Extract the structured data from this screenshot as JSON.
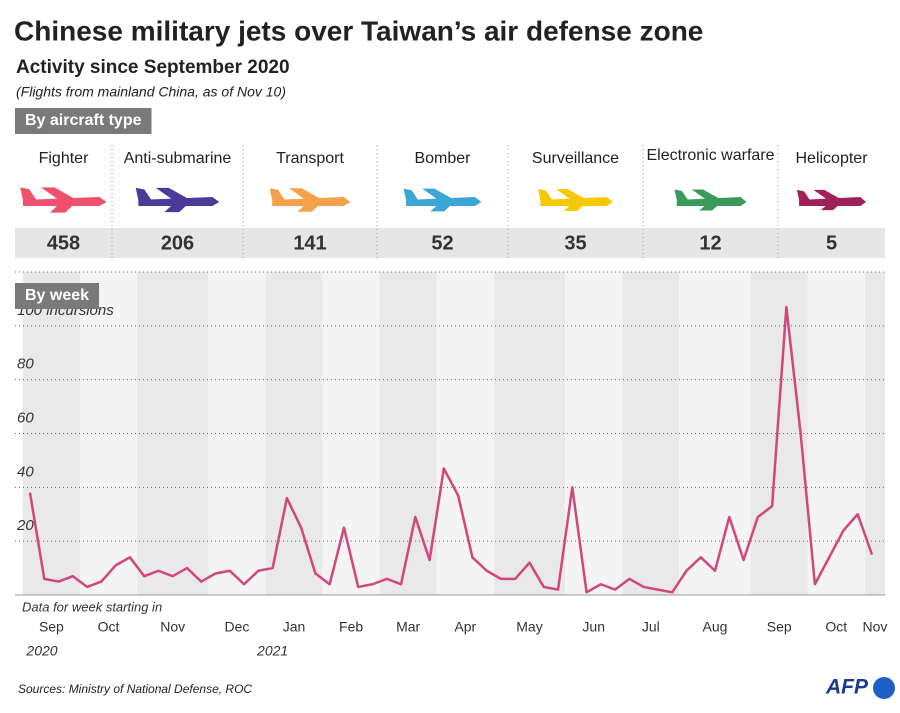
{
  "title": "Chinese military jets over Taiwan’s air defense zone",
  "subtitle": "Activity since September 2020",
  "note": "(Flights from mainland China, as of Nov 10)",
  "source": "Sources: Ministry of National Defense, ROC",
  "logo": "AFP",
  "chart_data": [
    {
      "type": "pictogram",
      "title": "By aircraft type",
      "categories": [
        "Fighter",
        "Anti-submarine",
        "Transport",
        "Bomber",
        "Surveillance",
        "Electronic warfare",
        "Helicopter"
      ],
      "values": [
        458,
        206,
        141,
        52,
        35,
        12,
        5
      ],
      "colors": [
        "#f0506e",
        "#4b3a9a",
        "#f5a04a",
        "#3aa6d8",
        "#f5c800",
        "#3a9a5a",
        "#a0205a"
      ]
    },
    {
      "type": "line",
      "title": "By week",
      "x_label": "Data for week starting in",
      "color": "#d1477c",
      "grid": true,
      "categories": [
        "Sep",
        null,
        null,
        null,
        "Oct",
        null,
        null,
        null,
        "Nov",
        null,
        null,
        null,
        null,
        "Dec",
        null,
        null,
        null,
        "Jan",
        null,
        null,
        null,
        "Feb",
        null,
        null,
        null,
        "Mar",
        null,
        null,
        null,
        "Apr",
        null,
        null,
        null,
        "May",
        null,
        null,
        null,
        null,
        "Jun",
        null,
        null,
        null,
        "Jul",
        null,
        null,
        null,
        "Aug",
        null,
        null,
        null,
        null,
        "Sep",
        null,
        null,
        null,
        "Oct",
        null,
        null,
        null,
        "Nov"
      ],
      "values": [
        38,
        6,
        5,
        7,
        3,
        5,
        11,
        14,
        7,
        9,
        7,
        10,
        5,
        8,
        9,
        4,
        9,
        10,
        36,
        25,
        8,
        4,
        25,
        3,
        4,
        6,
        4,
        29,
        13,
        47,
        37,
        14,
        9,
        6,
        6,
        12,
        3,
        2,
        40,
        1,
        4,
        2,
        6,
        3,
        2,
        1,
        9,
        14,
        9,
        29,
        13,
        29,
        33,
        107,
        60,
        4,
        14,
        24,
        30,
        15
      ],
      "annotations": [
        {
          "text": "2020",
          "at": 0
        },
        {
          "text": "2021",
          "at": 17
        }
      ],
      "ylim": [
        0,
        120
      ],
      "yticks": [
        20,
        40,
        60,
        80,
        {
          "value": 100,
          "label": "100 incursions"
        }
      ]
    }
  ]
}
